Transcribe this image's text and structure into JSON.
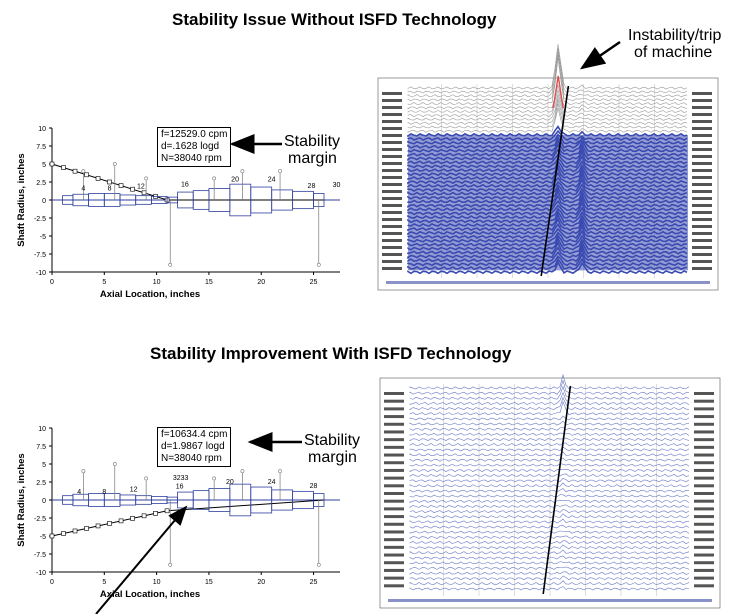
{
  "top": {
    "title": "Stability Issue Without ISFD Technology",
    "callout_lines": [
      "Instability/trip",
      "of machine"
    ],
    "box_lines": [
      "f=12529.0 cpm",
      "d=.1628 logd",
      "N=38040 rpm"
    ],
    "margin_lines": [
      "Stability",
      "margin"
    ],
    "station_labels": [
      "4",
      "8",
      "12",
      "16",
      "20",
      "24",
      "28",
      "30"
    ]
  },
  "bottom": {
    "title": "Stability Improvement With ISFD Technology",
    "box_lines": [
      "f=10634.4 cpm",
      "d=1.9867 logd",
      "N=38040 rpm"
    ],
    "margin_lines": [
      "Stability",
      "margin"
    ],
    "station_labels": [
      "4",
      "8",
      "12",
      "3233",
      "16",
      "20",
      "24",
      "28"
    ]
  },
  "plot": {
    "ylabel": "Shaft Radius, inches",
    "xlabel": "Axial Location, inches",
    "y_ticks": [
      "10",
      "7.5",
      "5",
      "2.5",
      "0",
      "-2.5",
      "-5",
      "-7.5",
      "-10"
    ],
    "x_ticks": [
      "0",
      "5",
      "10",
      "15",
      "20",
      "25"
    ]
  },
  "colors": {
    "shaft": "#2e3f9e",
    "waterfall_fill": "#3a4bb0",
    "peak": "#e05050"
  }
}
